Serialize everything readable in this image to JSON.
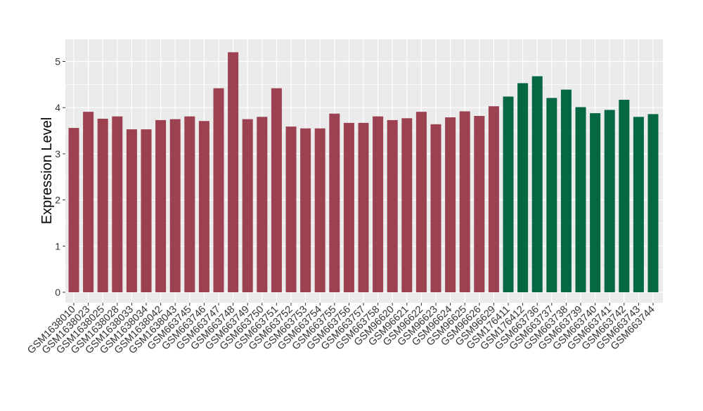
{
  "chart_data": {
    "type": "bar",
    "title": "",
    "xlabel": "",
    "ylabel": "Expression Level",
    "ylim": [
      -0.2,
      5.45
    ],
    "yticks": [
      0,
      1,
      2,
      3,
      4,
      5
    ],
    "grid": true,
    "legend": "none",
    "colors": {
      "group_a": "#9b4150",
      "group_b": "#056843",
      "panel_bg": "#ebebeb",
      "grid": "#ffffff"
    },
    "categories": [
      "GSM1638010",
      "GSM1638023",
      "GSM1638025",
      "GSM1638028",
      "GSM1638033",
      "GSM1638034",
      "GSM1638042",
      "GSM1638043",
      "GSM663745",
      "GSM663746",
      "GSM663747",
      "GSM663748",
      "GSM663749",
      "GSM663750",
      "GSM663751",
      "GSM663752",
      "GSM663753",
      "GSM663754",
      "GSM663755",
      "GSM663756",
      "GSM663757",
      "GSM663758",
      "GSM96620",
      "GSM96621",
      "GSM96622",
      "GSM96623",
      "GSM96624",
      "GSM96625",
      "GSM96626",
      "GSM96629",
      "GSM176411",
      "GSM176412",
      "GSM663736",
      "GSM663737",
      "GSM663738",
      "GSM663739",
      "GSM663740",
      "GSM663741",
      "GSM663742",
      "GSM663743",
      "GSM663744"
    ],
    "values": [
      3.56,
      3.91,
      3.76,
      3.81,
      3.53,
      3.53,
      3.73,
      3.75,
      3.81,
      3.71,
      4.42,
      5.2,
      3.75,
      3.8,
      4.42,
      3.59,
      3.55,
      3.55,
      3.87,
      3.67,
      3.67,
      3.81,
      3.73,
      3.77,
      3.91,
      3.64,
      3.79,
      3.92,
      3.82,
      4.03,
      4.24,
      4.53,
      4.68,
      4.21,
      4.39,
      4.01,
      3.88,
      3.95,
      4.17,
      3.8,
      3.86
    ],
    "groups": [
      "a",
      "a",
      "a",
      "a",
      "a",
      "a",
      "a",
      "a",
      "a",
      "a",
      "a",
      "a",
      "a",
      "a",
      "a",
      "a",
      "a",
      "a",
      "a",
      "a",
      "a",
      "a",
      "a",
      "a",
      "a",
      "a",
      "a",
      "a",
      "a",
      "a",
      "b",
      "b",
      "b",
      "b",
      "b",
      "b",
      "b",
      "b",
      "b",
      "b",
      "b"
    ]
  }
}
